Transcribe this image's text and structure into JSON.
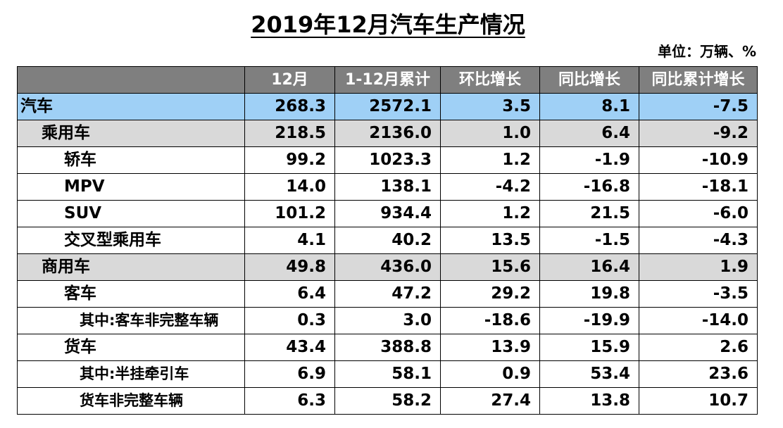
{
  "title": "2019年12月汽车生产情况",
  "unit": "单位：万辆、%",
  "table": {
    "headers": [
      "",
      "12月",
      "1-12月累计",
      "环比增长",
      "同比增长",
      "同比累计增长"
    ],
    "rows": [
      {
        "name": "汽车",
        "level": 0,
        "values": [
          "268.3",
          "2572.1",
          "3.5",
          "8.1",
          "-7.5"
        ]
      },
      {
        "name": "乘用车",
        "level": 1,
        "values": [
          "218.5",
          "2136.0",
          "1.0",
          "6.4",
          "-9.2"
        ]
      },
      {
        "name": "轿车",
        "level": 2,
        "values": [
          "99.2",
          "1023.3",
          "1.2",
          "-1.9",
          "-10.9"
        ]
      },
      {
        "name": "MPV",
        "level": 2,
        "values": [
          "14.0",
          "138.1",
          "-4.2",
          "-16.8",
          "-18.1"
        ]
      },
      {
        "name": "SUV",
        "level": 2,
        "values": [
          "101.2",
          "934.4",
          "1.2",
          "21.5",
          "-6.0"
        ]
      },
      {
        "name": "交叉型乘用车",
        "level": 2,
        "values": [
          "4.1",
          "40.2",
          "13.5",
          "-1.5",
          "-4.3"
        ]
      },
      {
        "name": "商用车",
        "level": 1,
        "values": [
          "49.8",
          "436.0",
          "15.6",
          "16.4",
          "1.9"
        ]
      },
      {
        "name": "客车",
        "level": 2,
        "values": [
          "6.4",
          "47.2",
          "29.2",
          "19.8",
          "-3.5"
        ]
      },
      {
        "name": "其中:客车非完整车辆",
        "level": 3,
        "values": [
          "0.3",
          "3.0",
          "-18.6",
          "-19.9",
          "-14.0"
        ]
      },
      {
        "name": "货车",
        "level": 2,
        "values": [
          "43.4",
          "388.8",
          "13.9",
          "15.9",
          "2.6"
        ]
      },
      {
        "name": "其中:半挂牵引车",
        "level": 3,
        "values": [
          "6.9",
          "58.1",
          "0.9",
          "53.4",
          "23.6"
        ]
      },
      {
        "name": "货车非完整车辆",
        "level": 3,
        "values": [
          "6.3",
          "58.2",
          "27.4",
          "13.8",
          "10.7"
        ]
      }
    ]
  }
}
